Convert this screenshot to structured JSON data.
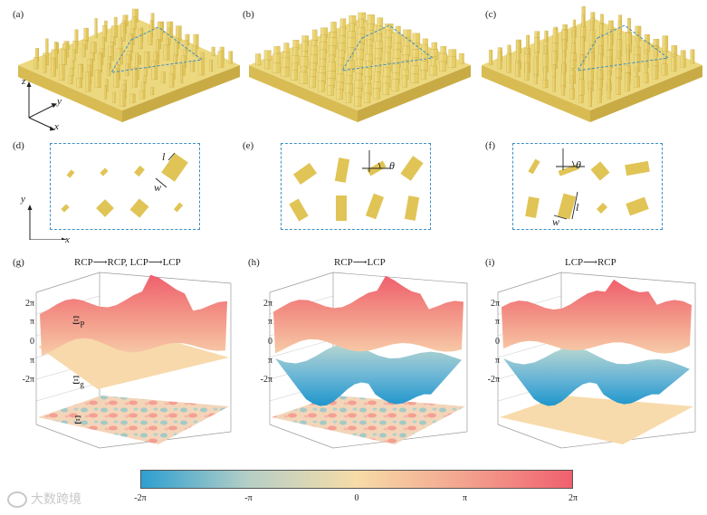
{
  "panels": {
    "a": "(a)",
    "b": "(b)",
    "c": "(c)",
    "d": "(d)",
    "e": "(e)",
    "f": "(f)",
    "g": "(g)",
    "h": "(h)",
    "i": "(i)"
  },
  "titles": {
    "g": "RCP⟶RCP, LCP⟶LCP",
    "h": "RCP⟶LCP",
    "i": "LCP⟶RCP"
  },
  "axes": {
    "x": "x",
    "y": "y",
    "z": "z"
  },
  "annotations": {
    "l": "l",
    "w": "w",
    "theta": "θ",
    "xi_p": "Ξ",
    "xi_p_sub": "P",
    "xi_g": "Ξ",
    "xi_g_sub": "g",
    "xi": "Ξ"
  },
  "z_ticks": [
    "2π",
    "π",
    "0",
    "π",
    "-2π"
  ],
  "colorbar": {
    "ticks": [
      "-2π",
      "-π",
      "0",
      "π",
      "2π"
    ],
    "colors": [
      "#2d9fd0",
      "#b6cfc6",
      "#f7dca7",
      "#f3a38f",
      "#f0606e"
    ]
  },
  "watermark": "大数跨境",
  "colors": {
    "metasurface_top": "#ecd87e",
    "metasurface_side": "#d8bb52",
    "pillar": "#e2c65c",
    "dash": "#3d8fc6",
    "warm": "#f28a80",
    "cool": "#48a8d2"
  }
}
